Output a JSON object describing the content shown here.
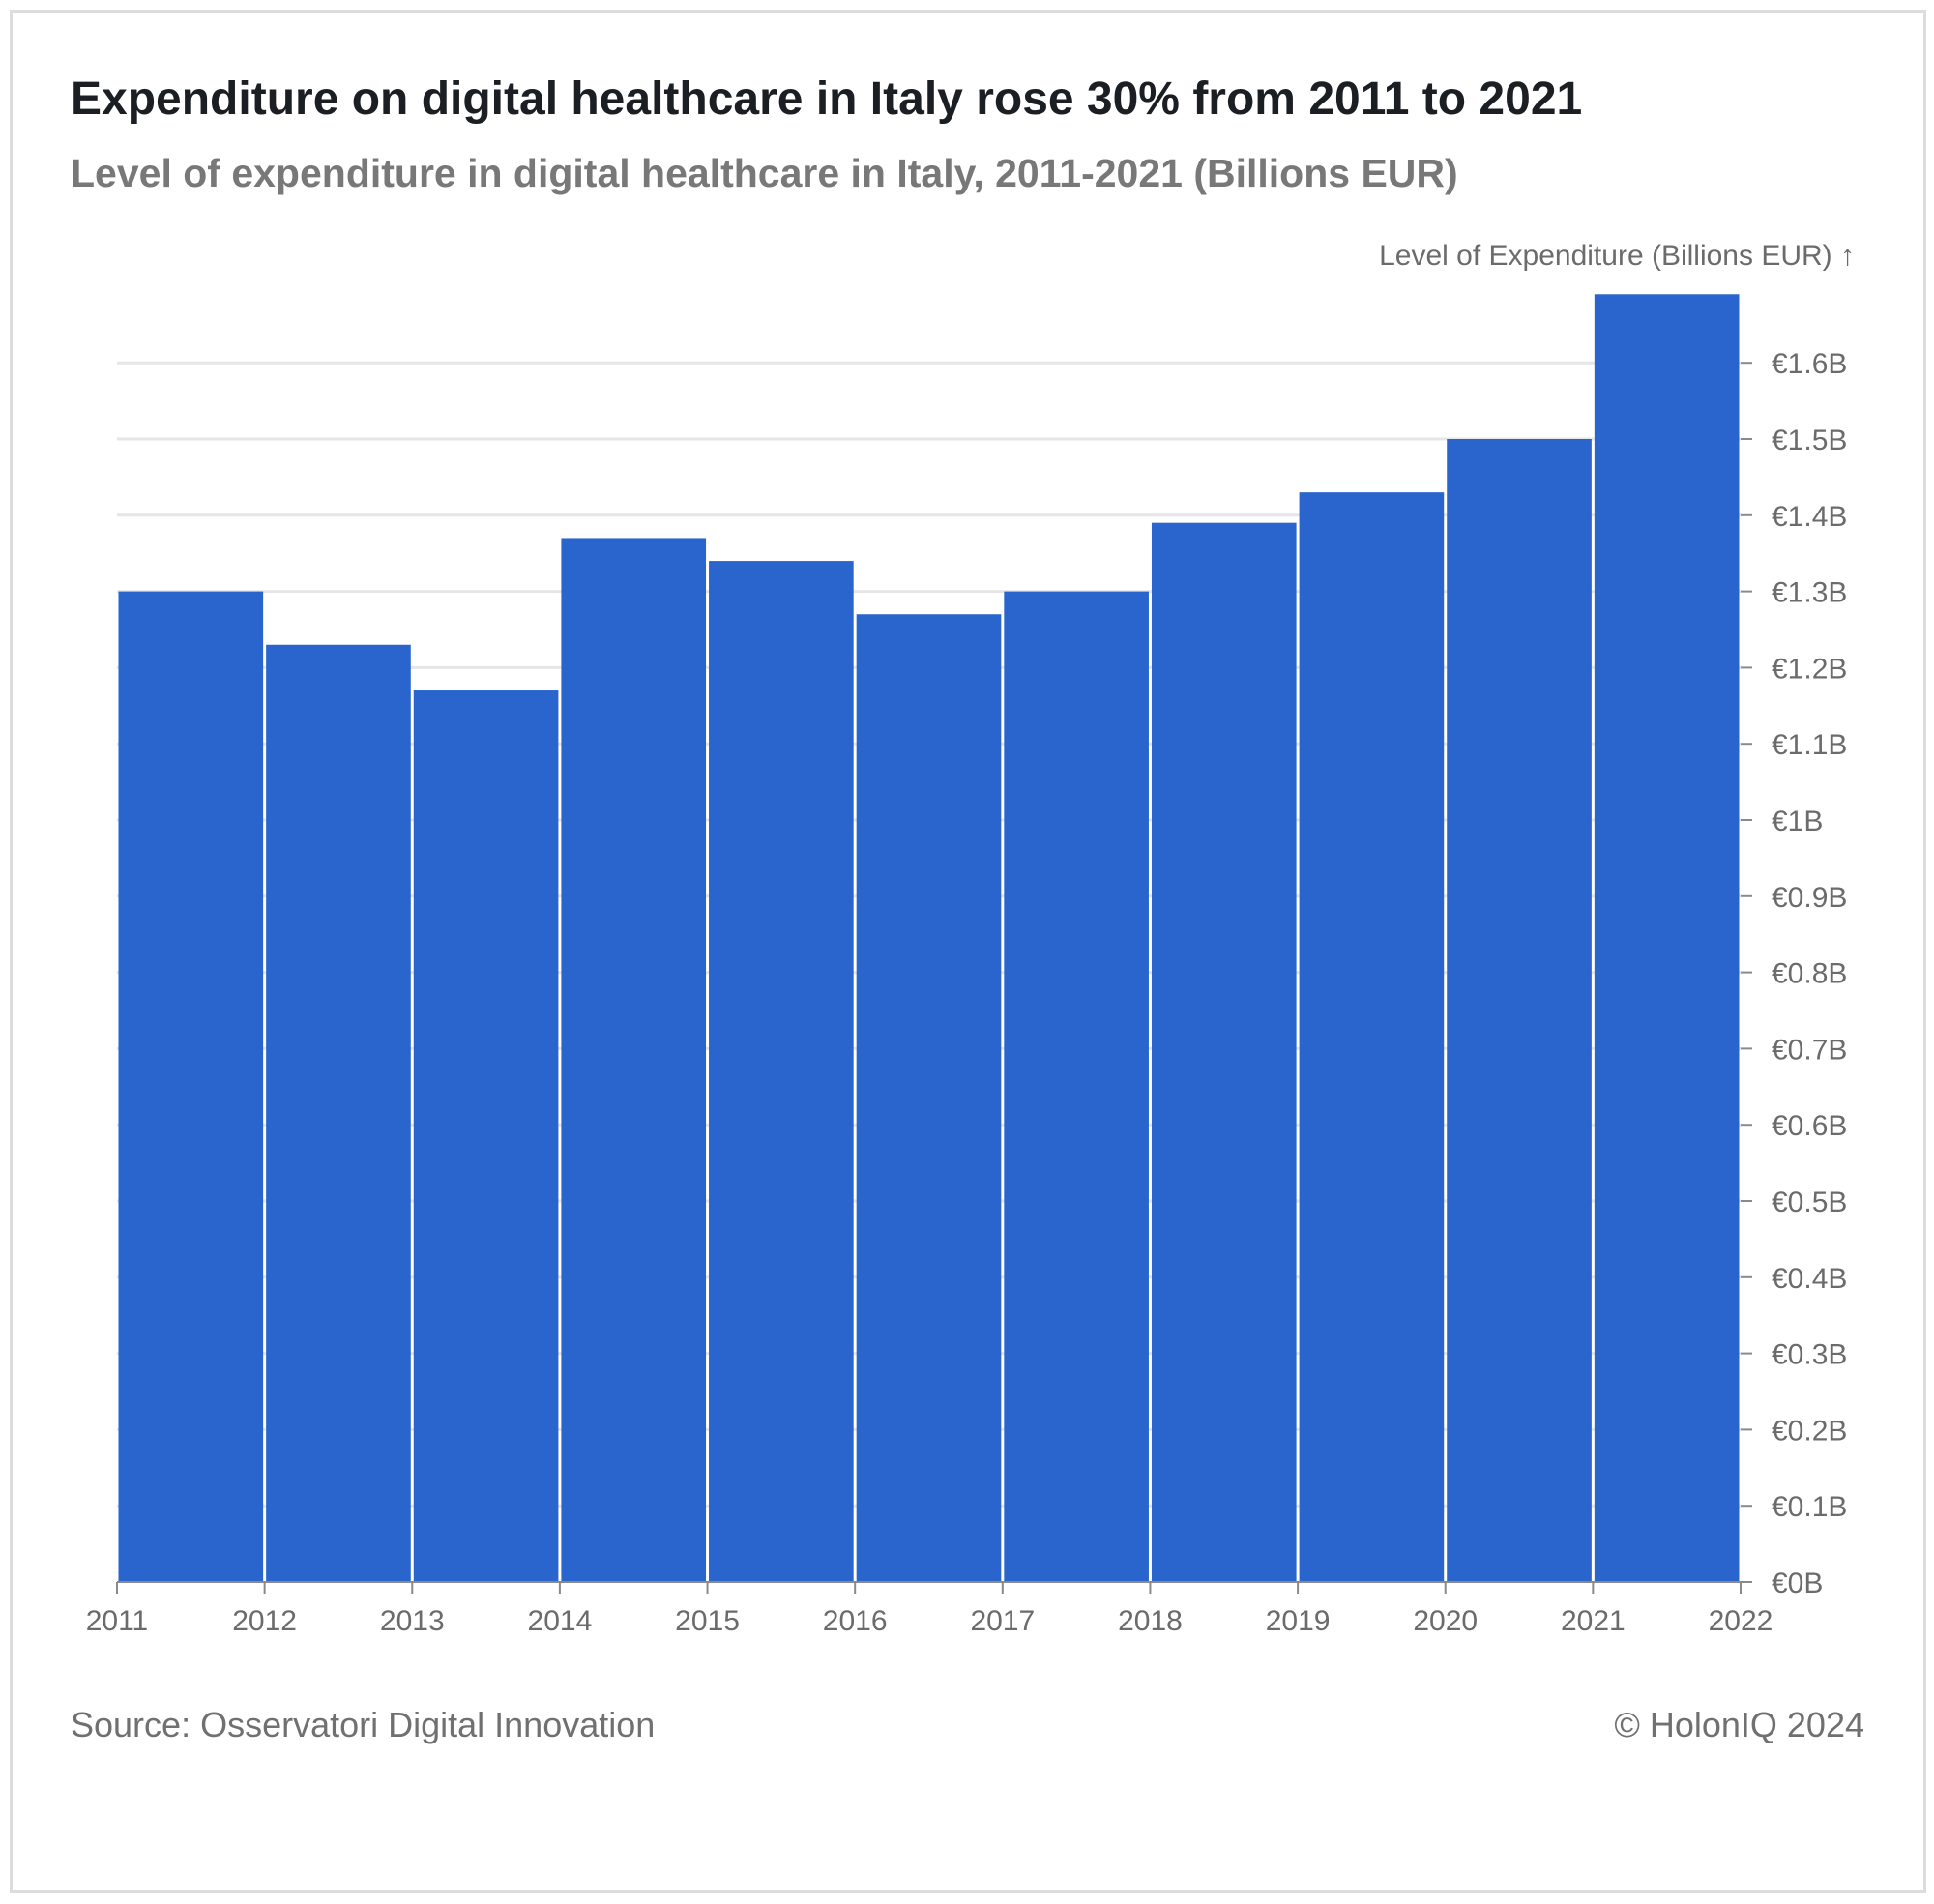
{
  "title": "Expenditure on digital healthcare in Italy rose 30% from 2011 to 2021",
  "subtitle": "Level of expenditure in digital healthcare in Italy, 2011-2021 (Billions EUR)",
  "source": "Source: Osservatori Digital Innovation",
  "copyright": "© HolonIQ 2024",
  "colors": {
    "bar": "#2965cc",
    "grid": "#e6e6e6",
    "axis_text": "#6b6b6b",
    "title": "#1b1f24",
    "subtitle": "#787878"
  },
  "chart_data": {
    "type": "bar",
    "title": "Expenditure on digital healthcare in Italy rose 30% from 2011 to 2021",
    "subtitle": "Level of expenditure in digital healthcare in Italy, 2011-2021 (Billions EUR)",
    "ylabel": "Level of Expenditure (Billions EUR) ↑",
    "xlabel": "",
    "y_axis_position": "right",
    "x": [
      2011,
      2012,
      2013,
      2014,
      2015,
      2016,
      2017,
      2018,
      2019,
      2020,
      2021
    ],
    "x_end": 2022,
    "values": [
      1.3,
      1.23,
      1.17,
      1.37,
      1.34,
      1.27,
      1.3,
      1.39,
      1.43,
      1.5,
      1.69
    ],
    "ylim": [
      0,
      1.69
    ],
    "x_ticks": [
      "2011",
      "2012",
      "2013",
      "2014",
      "2015",
      "2016",
      "2017",
      "2018",
      "2019",
      "2020",
      "2021",
      "2022"
    ],
    "y_ticks": [
      0,
      0.1,
      0.2,
      0.3,
      0.4,
      0.5,
      0.6,
      0.7,
      0.8,
      0.9,
      1.0,
      1.1,
      1.2,
      1.3,
      1.4,
      1.5,
      1.6
    ],
    "y_tick_labels": [
      "€0B",
      "€0.1B",
      "€0.2B",
      "€0.3B",
      "€0.4B",
      "€0.5B",
      "€0.6B",
      "€0.7B",
      "€0.8B",
      "€0.9B",
      "€1B",
      "€1.1B",
      "€1.2B",
      "€1.3B",
      "€1.4B",
      "€1.5B",
      "€1.6B"
    ],
    "grid": true,
    "legend": "none"
  }
}
